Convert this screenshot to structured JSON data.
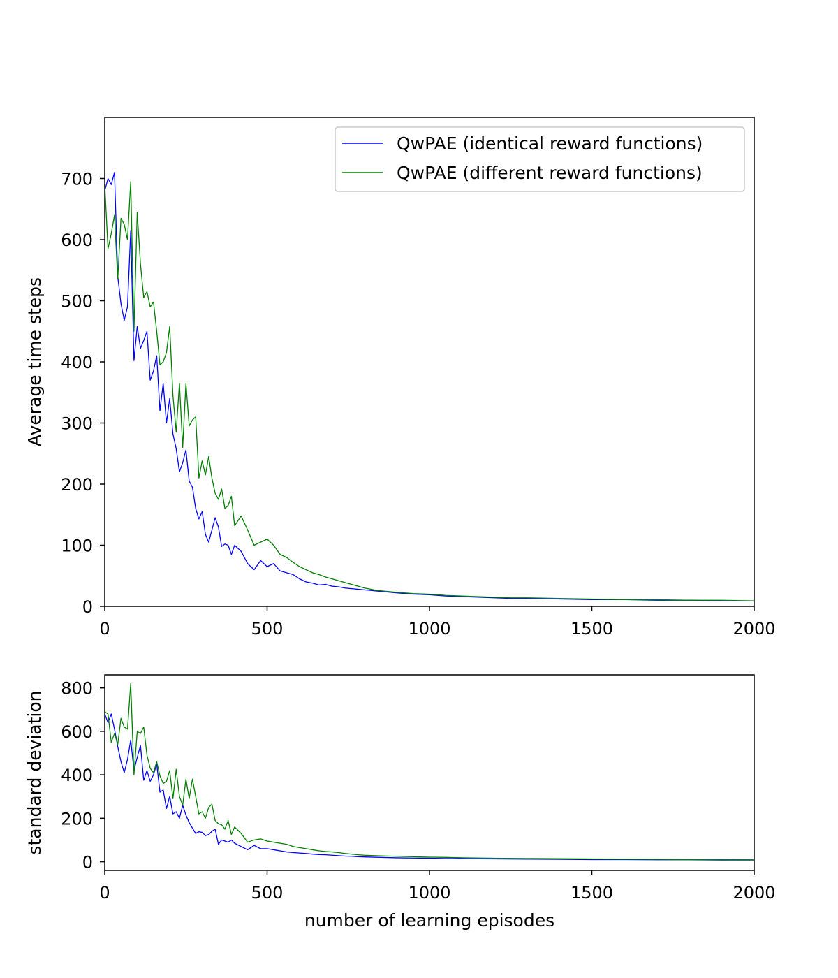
{
  "figure": {
    "background": "#ffffff"
  },
  "chart_data": [
    {
      "type": "line",
      "title": "",
      "xlabel": "",
      "ylabel": "Average time steps",
      "xlim": [
        0,
        2000
      ],
      "ylim": [
        0,
        800
      ],
      "xticks": [
        0,
        500,
        1000,
        1500,
        2000
      ],
      "yticks": [
        0,
        100,
        200,
        300,
        400,
        500,
        600,
        700
      ],
      "grid": false,
      "legend": "top-right",
      "series": [
        {
          "name": "QwPAE (identical reward functions)",
          "color": "#0000ff",
          "x": [
            0,
            10,
            20,
            30,
            40,
            50,
            60,
            70,
            80,
            90,
            100,
            110,
            120,
            130,
            140,
            150,
            160,
            170,
            180,
            190,
            200,
            210,
            220,
            230,
            240,
            250,
            260,
            270,
            280,
            290,
            300,
            310,
            320,
            330,
            340,
            350,
            360,
            370,
            380,
            390,
            400,
            420,
            440,
            460,
            480,
            500,
            520,
            540,
            560,
            580,
            600,
            620,
            640,
            660,
            680,
            700,
            720,
            740,
            760,
            780,
            800,
            820,
            840,
            860,
            880,
            900,
            950,
            1000,
            1050,
            1100,
            1150,
            1200,
            1250,
            1300,
            1400,
            1500,
            1600,
            1700,
            1800,
            1900,
            2000
          ],
          "values": [
            680,
            700,
            690,
            710,
            540,
            495,
            468,
            490,
            615,
            402,
            458,
            422,
            435,
            450,
            370,
            385,
            410,
            320,
            365,
            300,
            340,
            282,
            258,
            220,
            235,
            256,
            205,
            195,
            160,
            143,
            155,
            118,
            105,
            125,
            145,
            130,
            98,
            102,
            100,
            85,
            100,
            90,
            70,
            60,
            75,
            65,
            70,
            58,
            55,
            52,
            45,
            40,
            38,
            35,
            36,
            33,
            32,
            30,
            29,
            28,
            27,
            26,
            25,
            24,
            23,
            22,
            20,
            19,
            17,
            16,
            15,
            14,
            13,
            13,
            12,
            11,
            11,
            10,
            10,
            9,
            9
          ]
        },
        {
          "name": "QwPAE (different reward functions)",
          "color": "#008000",
          "x": [
            0,
            10,
            20,
            30,
            40,
            50,
            60,
            70,
            80,
            90,
            100,
            110,
            120,
            130,
            140,
            150,
            160,
            170,
            180,
            190,
            200,
            210,
            220,
            230,
            240,
            250,
            260,
            270,
            280,
            290,
            300,
            310,
            320,
            330,
            340,
            350,
            360,
            370,
            380,
            390,
            400,
            420,
            440,
            460,
            480,
            500,
            520,
            540,
            560,
            580,
            600,
            620,
            640,
            660,
            680,
            700,
            720,
            740,
            760,
            780,
            800,
            820,
            840,
            860,
            880,
            900,
            950,
            1000,
            1050,
            1100,
            1150,
            1200,
            1250,
            1300,
            1400,
            1500,
            1600,
            1700,
            1800,
            1900,
            2000
          ],
          "values": [
            690,
            585,
            610,
            640,
            535,
            635,
            625,
            600,
            695,
            450,
            645,
            560,
            505,
            515,
            490,
            498,
            450,
            395,
            400,
            415,
            458,
            345,
            285,
            365,
            260,
            365,
            295,
            305,
            310,
            210,
            238,
            215,
            245,
            210,
            185,
            175,
            192,
            160,
            165,
            180,
            132,
            148,
            125,
            100,
            105,
            110,
            100,
            85,
            80,
            72,
            65,
            60,
            55,
            52,
            48,
            45,
            42,
            39,
            36,
            33,
            30,
            28,
            26,
            25,
            24,
            23,
            21,
            20,
            18,
            17,
            16,
            15,
            14,
            14,
            13,
            12,
            11,
            11,
            10,
            10,
            9
          ]
        }
      ]
    },
    {
      "type": "line",
      "title": "",
      "xlabel": "number of learning episodes",
      "ylabel": "standard deviation",
      "xlim": [
        0,
        2000
      ],
      "ylim": [
        -40,
        860
      ],
      "xticks": [
        0,
        500,
        1000,
        1500,
        2000
      ],
      "yticks": [
        0,
        200,
        400,
        600,
        800
      ],
      "grid": false,
      "series": [
        {
          "color": "#0000ff",
          "x": [
            0,
            10,
            20,
            30,
            40,
            50,
            60,
            70,
            80,
            90,
            100,
            110,
            120,
            130,
            140,
            150,
            160,
            170,
            180,
            190,
            200,
            210,
            220,
            230,
            240,
            250,
            260,
            270,
            280,
            290,
            300,
            310,
            320,
            330,
            340,
            350,
            360,
            370,
            380,
            390,
            400,
            420,
            440,
            460,
            480,
            500,
            520,
            540,
            560,
            580,
            600,
            620,
            640,
            660,
            680,
            700,
            720,
            740,
            760,
            780,
            800,
            850,
            900,
            950,
            1000,
            1050,
            1100,
            1200,
            1300,
            1400,
            1500,
            1600,
            1700,
            1800,
            1900,
            2000
          ],
          "values": [
            680,
            640,
            680,
            610,
            530,
            460,
            410,
            470,
            560,
            420,
            480,
            535,
            375,
            420,
            370,
            400,
            450,
            320,
            330,
            245,
            300,
            220,
            230,
            200,
            260,
            215,
            180,
            155,
            130,
            138,
            135,
            120,
            125,
            140,
            150,
            80,
            100,
            95,
            90,
            100,
            85,
            70,
            55,
            75,
            60,
            60,
            55,
            50,
            45,
            42,
            40,
            38,
            35,
            33,
            32,
            30,
            28,
            26,
            25,
            23,
            22,
            20,
            18,
            17,
            16,
            15,
            14,
            13,
            12,
            11,
            10,
            10,
            9,
            9,
            8,
            8
          ]
        },
        {
          "color": "#008000",
          "x": [
            0,
            10,
            20,
            30,
            40,
            50,
            60,
            70,
            80,
            90,
            100,
            110,
            120,
            130,
            140,
            150,
            160,
            170,
            180,
            190,
            200,
            210,
            220,
            230,
            240,
            250,
            260,
            270,
            280,
            290,
            300,
            310,
            320,
            330,
            340,
            350,
            360,
            370,
            380,
            390,
            400,
            420,
            440,
            460,
            480,
            500,
            520,
            540,
            560,
            580,
            600,
            620,
            640,
            660,
            680,
            700,
            720,
            740,
            760,
            780,
            800,
            850,
            900,
            950,
            1000,
            1050,
            1100,
            1200,
            1300,
            1400,
            1500,
            1600,
            1700,
            1800,
            1900,
            2000
          ],
          "values": [
            690,
            680,
            550,
            590,
            540,
            660,
            620,
            610,
            820,
            400,
            600,
            590,
            620,
            490,
            430,
            410,
            460,
            395,
            360,
            370,
            420,
            290,
            425,
            300,
            260,
            380,
            290,
            380,
            300,
            220,
            230,
            200,
            250,
            265,
            190,
            175,
            170,
            150,
            190,
            125,
            160,
            130,
            90,
            100,
            105,
            95,
            90,
            85,
            80,
            70,
            65,
            60,
            55,
            50,
            47,
            45,
            42,
            38,
            35,
            32,
            30,
            27,
            25,
            23,
            21,
            20,
            18,
            16,
            15,
            14,
            13,
            12,
            11,
            10,
            10,
            9
          ]
        }
      ]
    }
  ]
}
